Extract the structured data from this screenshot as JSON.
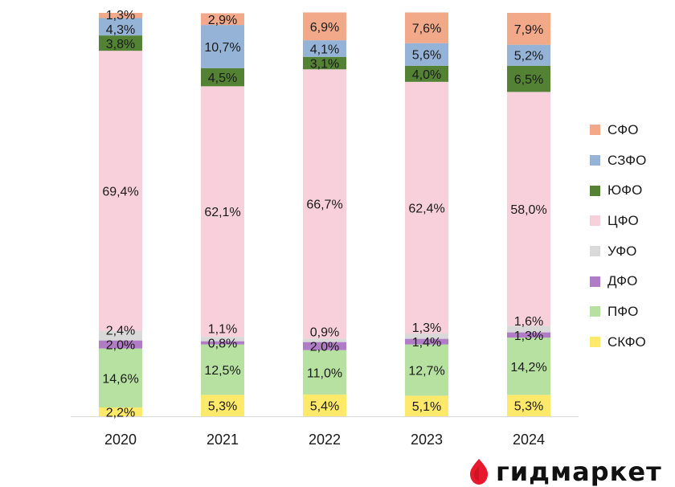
{
  "chart_data": {
    "type": "bar",
    "stacked": true,
    "normalized": true,
    "title": "",
    "xlabel": "",
    "ylabel": "",
    "ylim": [
      0,
      100
    ],
    "grid": false,
    "legend_position": "right",
    "categories": [
      "2020",
      "2021",
      "2022",
      "2023",
      "2024"
    ],
    "series": [
      {
        "name": "СКФО",
        "color": "#FFE96B",
        "values": [
          2.2,
          5.3,
          5.4,
          5.1,
          5.3
        ],
        "labels": [
          "2,2%",
          "5,3%",
          "5,4%",
          "5,1%",
          "5,3%"
        ]
      },
      {
        "name": "ПФО",
        "color": "#B7E1A1",
        "values": [
          14.6,
          12.5,
          11.0,
          12.7,
          14.2
        ],
        "labels": [
          "14,6%",
          "12,5%",
          "11,0%",
          "12,7%",
          "14,2%"
        ]
      },
      {
        "name": "ДФО",
        "color": "#B07CC6",
        "values": [
          2.0,
          0.8,
          2.0,
          1.4,
          1.3
        ],
        "labels": [
          "2,0%",
          "0,8%",
          "2,0%",
          "1,4%",
          "1,3%"
        ]
      },
      {
        "name": "УФО",
        "color": "#D9D9D9",
        "values": [
          2.4,
          1.1,
          0.9,
          1.3,
          1.6
        ],
        "labels": [
          "2,4%",
          "1,1%",
          "0,9%",
          "1,3%",
          "1,6%"
        ]
      },
      {
        "name": "ЦФО",
        "color": "#F8D0DC",
        "values": [
          69.4,
          62.1,
          66.7,
          62.4,
          58.0
        ],
        "labels": [
          "69,4%",
          "62,1%",
          "66,7%",
          "62,4%",
          "58,0%"
        ]
      },
      {
        "name": "ЮФО",
        "color": "#548235",
        "values": [
          3.8,
          4.5,
          3.1,
          4.0,
          6.5
        ],
        "labels": [
          "3,8%",
          "4,5%",
          "3,1%",
          "4,0%",
          "6,5%"
        ]
      },
      {
        "name": "СЗФО",
        "color": "#95B3D7",
        "values": [
          4.3,
          10.7,
          4.1,
          5.6,
          5.2
        ],
        "labels": [
          "4,3%",
          "10,7%",
          "4,1%",
          "5,6%",
          "5,2%"
        ]
      },
      {
        "name": "СФО",
        "color": "#F2A98A",
        "values": [
          1.3,
          2.9,
          6.9,
          7.6,
          7.9
        ],
        "labels": [
          "1,3%",
          "2,9%",
          "6,9%",
          "7,6%",
          "7,9%"
        ]
      }
    ],
    "legend_order": [
      "СФО",
      "СЗФО",
      "ЮФО",
      "ЦФО",
      "УФО",
      "ДФО",
      "ПФО",
      "СКФО"
    ]
  },
  "brand": {
    "name": "гидмаркет",
    "color": "#E8192C"
  }
}
